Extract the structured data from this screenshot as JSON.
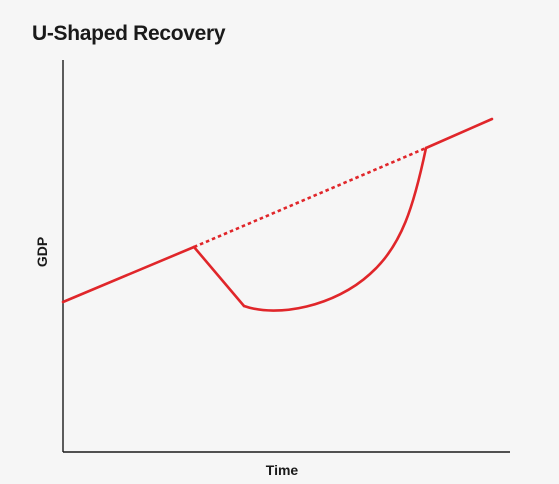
{
  "title": "U-Shaped Recovery",
  "axes": {
    "xlabel": "Time",
    "ylabel": "GDP"
  },
  "colors": {
    "background": "#f6f6f6",
    "axis": "#1a1a1a",
    "line": "#e0262a"
  }
}
